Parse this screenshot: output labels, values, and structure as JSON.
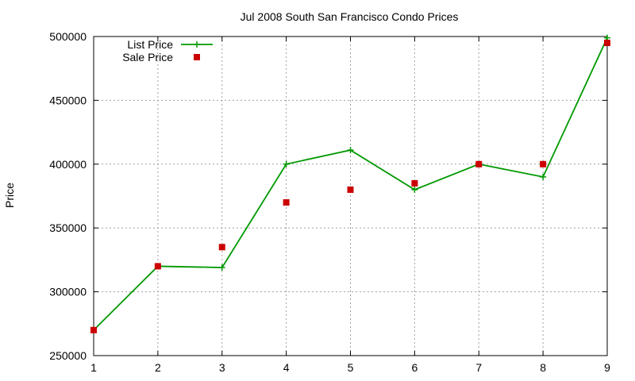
{
  "chart_data": {
    "type": "line",
    "title": "Jul 2008 South San Francisco Condo Prices",
    "xlabel": "",
    "ylabel": "Price",
    "xlim": [
      1,
      9
    ],
    "ylim": [
      250000,
      500000
    ],
    "x_ticks": [
      "1",
      "2",
      "3",
      "4",
      "5",
      "6",
      "7",
      "8",
      "9"
    ],
    "y_ticks": [
      "250000",
      "300000",
      "350000",
      "400000",
      "450000",
      "500000"
    ],
    "grid": true,
    "legend_position": "top-left",
    "x": [
      1,
      2,
      3,
      4,
      5,
      6,
      7,
      8,
      9
    ],
    "series": [
      {
        "name": "List Price",
        "style": "linespoints",
        "color": "#009900",
        "values": [
          270000,
          320000,
          319000,
          400000,
          411000,
          380000,
          400000,
          390000,
          499000
        ]
      },
      {
        "name": "Sale Price",
        "style": "points",
        "color": "#cc0000",
        "values": [
          270000,
          320000,
          335000,
          370000,
          380000,
          385000,
          400000,
          400000,
          495000
        ]
      }
    ]
  }
}
